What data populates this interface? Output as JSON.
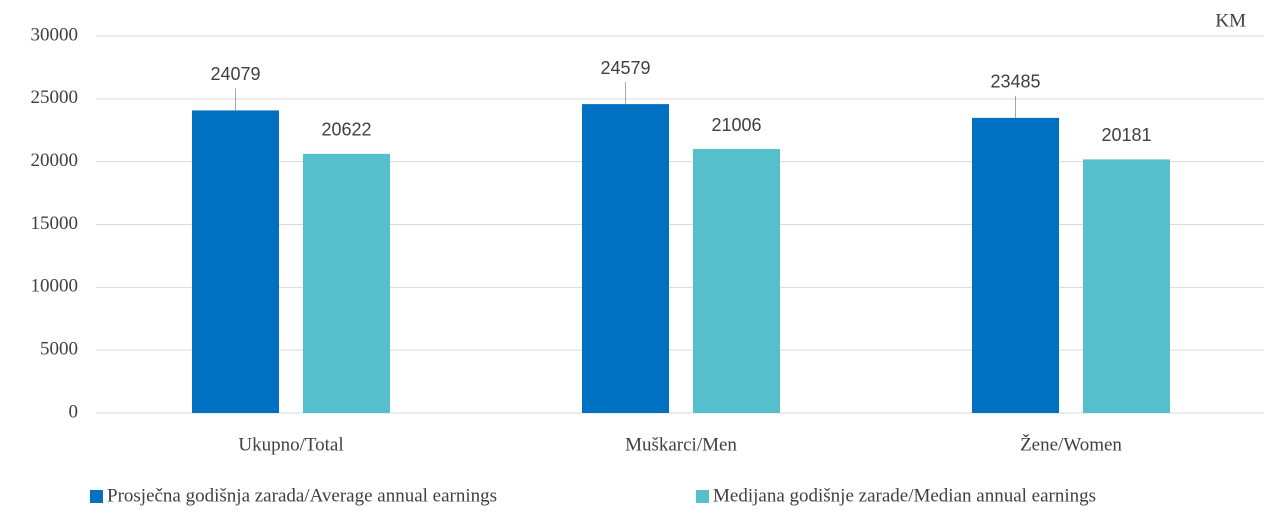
{
  "chart_data": {
    "type": "bar",
    "unit_label": "KM",
    "categories": [
      "Ukupno/Total",
      "Muškarci/Men",
      "Žene/Women"
    ],
    "series": [
      {
        "name": "Prosječna godišnja zarada/Average annual earnings",
        "color": "#0070c0",
        "values": [
          24079,
          24579,
          23485
        ]
      },
      {
        "name": "Medijana godišnje zarade/Median annual earnings",
        "color": "#56bfcc",
        "values": [
          20622,
          21006,
          20181
        ]
      }
    ],
    "ylim": [
      0,
      30000
    ],
    "yticks": [
      0,
      5000,
      10000,
      15000,
      20000,
      25000,
      30000
    ],
    "grid": true
  }
}
